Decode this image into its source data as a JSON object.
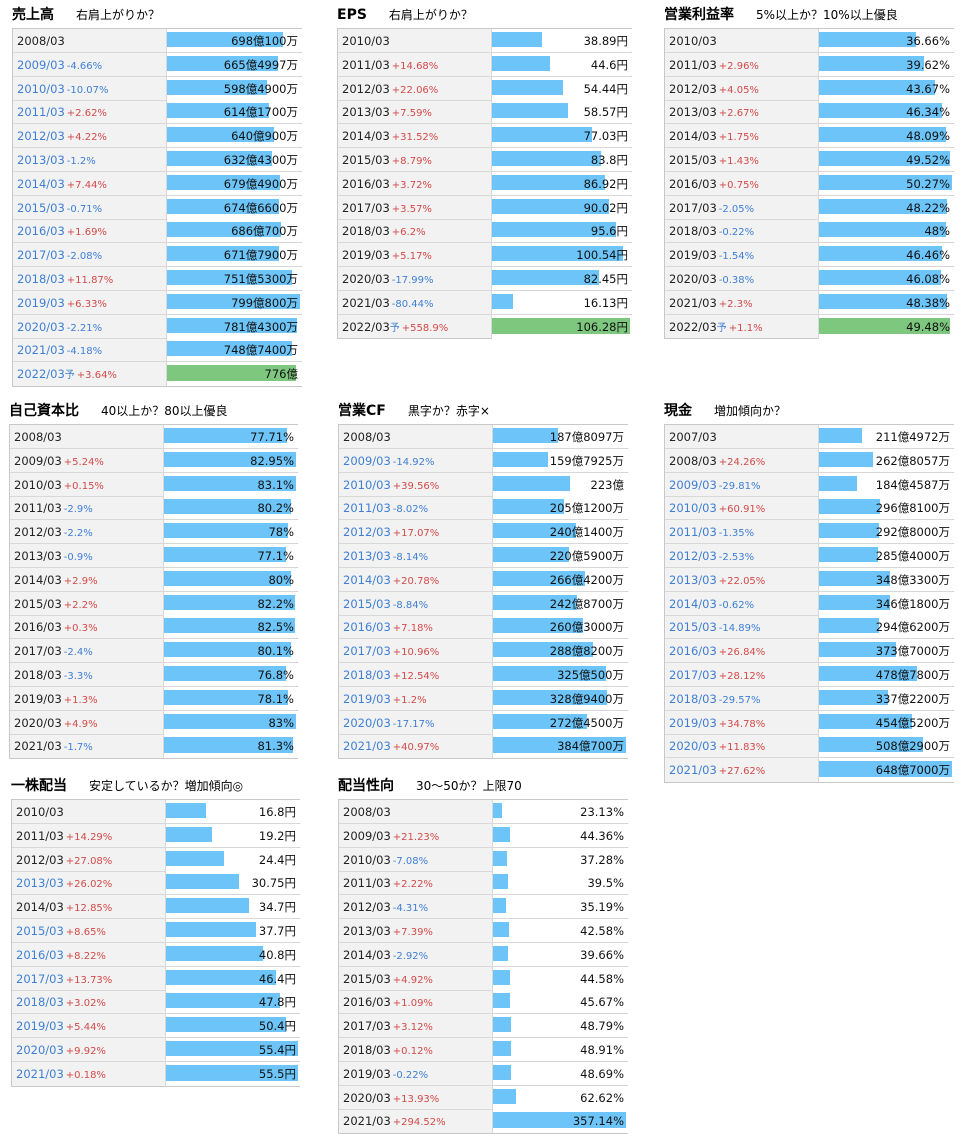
{
  "chart_data": [
    {
      "type": "table",
      "title": "売上高",
      "subtitle": "右肩上がりか？",
      "unit_display": "億/万",
      "categories": [
        "2008/03",
        "2009/03",
        "2010/03",
        "2011/03",
        "2012/03",
        "2013/03",
        "2014/03",
        "2015/03",
        "2016/03",
        "2017/03",
        "2018/03",
        "2019/03",
        "2020/03",
        "2021/03",
        "2022/03"
      ],
      "changes": [
        "",
        "-4.66%",
        "-10.07%",
        "+2.62%",
        "+4.22%",
        "-1.2%",
        "+7.44%",
        "-0.71%",
        "+1.69%",
        "-2.08%",
        "+11.87%",
        "+6.33%",
        "-2.21%",
        "-4.18%",
        "+3.64%"
      ],
      "labels": [
        "698億100万",
        "665億4997万",
        "598億4900万",
        "614億1700万",
        "640億900万",
        "632億4300万",
        "679億4900万",
        "674億6600万",
        "686億700万",
        "671億7900万",
        "751億5300万",
        "799億800万",
        "781億4300万",
        "748億7400万",
        "776億"
      ],
      "values": [
        698.01,
        665.4997,
        598.49,
        614.17,
        640.09,
        632.43,
        679.49,
        674.66,
        686.07,
        671.79,
        751.53,
        799.08,
        781.43,
        748.74,
        776
      ],
      "forecast_mark": "予",
      "forecast": [
        false,
        false,
        false,
        false,
        false,
        false,
        false,
        false,
        false,
        false,
        false,
        false,
        false,
        false,
        true
      ],
      "blue_years": [
        false,
        true,
        true,
        true,
        true,
        true,
        true,
        true,
        true,
        true,
        true,
        true,
        true,
        true,
        true
      ]
    },
    {
      "type": "table",
      "title": "EPS",
      "subtitle": "右肩上がりか？",
      "categories": [
        "2010/03",
        "2011/03",
        "2012/03",
        "2013/03",
        "2014/03",
        "2015/03",
        "2016/03",
        "2017/03",
        "2018/03",
        "2019/03",
        "2020/03",
        "2021/03",
        "2022/03"
      ],
      "changes": [
        "",
        "+14.68%",
        "+22.06%",
        "+7.59%",
        "+31.52%",
        "+8.79%",
        "+3.72%",
        "+3.57%",
        "+6.2%",
        "+5.17%",
        "-17.99%",
        "-80.44%",
        "+558.9%"
      ],
      "labels": [
        "38.89円",
        "44.6円",
        "54.44円",
        "58.57円",
        "77.03円",
        "83.8円",
        "86.92円",
        "90.02円",
        "95.6円",
        "100.54円",
        "82.45円",
        "16.13円",
        "106.28円"
      ],
      "values": [
        38.89,
        44.6,
        54.44,
        58.57,
        77.03,
        83.8,
        86.92,
        90.02,
        95.6,
        100.54,
        82.45,
        16.13,
        106.28
      ],
      "forecast_mark": "予",
      "forecast": [
        false,
        false,
        false,
        false,
        false,
        false,
        false,
        false,
        false,
        false,
        false,
        false,
        true
      ],
      "blue_years": [
        false,
        false,
        false,
        false,
        false,
        false,
        false,
        false,
        false,
        false,
        false,
        false,
        false
      ]
    },
    {
      "type": "table",
      "title": "営業利益率",
      "subtitle": "5%以上か？10%以上優良",
      "categories": [
        "2010/03",
        "2011/03",
        "2012/03",
        "2013/03",
        "2014/03",
        "2015/03",
        "2016/03",
        "2017/03",
        "2018/03",
        "2019/03",
        "2020/03",
        "2021/03",
        "2022/03"
      ],
      "changes": [
        "",
        "+2.96%",
        "+4.05%",
        "+2.67%",
        "+1.75%",
        "+1.43%",
        "+0.75%",
        "-2.05%",
        "-0.22%",
        "-1.54%",
        "-0.38%",
        "+2.3%",
        "+1.1%"
      ],
      "labels": [
        "36.66%",
        "39.62%",
        "43.67%",
        "46.34%",
        "48.09%",
        "49.52%",
        "50.27%",
        "48.22%",
        "48%",
        "46.46%",
        "46.08%",
        "48.38%",
        "49.48%"
      ],
      "values": [
        36.66,
        39.62,
        43.67,
        46.34,
        48.09,
        49.52,
        50.27,
        48.22,
        48,
        46.46,
        46.08,
        48.38,
        49.48
      ],
      "forecast_mark": "予",
      "forecast": [
        false,
        false,
        false,
        false,
        false,
        false,
        false,
        false,
        false,
        false,
        false,
        false,
        true
      ],
      "blue_years": [
        false,
        false,
        false,
        false,
        false,
        false,
        false,
        false,
        false,
        false,
        false,
        false,
        false
      ]
    },
    {
      "type": "table",
      "title": "自己資本比",
      "subtitle": "40以上か？80以上優良",
      "categories": [
        "2008/03",
        "2009/03",
        "2010/03",
        "2011/03",
        "2012/03",
        "2013/03",
        "2014/03",
        "2015/03",
        "2016/03",
        "2017/03",
        "2018/03",
        "2019/03",
        "2020/03",
        "2021/03"
      ],
      "changes": [
        "",
        "+5.24%",
        "+0.15%",
        "-2.9%",
        "-2.2%",
        "-0.9%",
        "+2.9%",
        "+2.2%",
        "+0.3%",
        "-2.4%",
        "-3.3%",
        "+1.3%",
        "+4.9%",
        "-1.7%"
      ],
      "labels": [
        "77.71%",
        "82.95%",
        "83.1%",
        "80.2%",
        "78%",
        "77.1%",
        "80%",
        "82.2%",
        "82.5%",
        "80.1%",
        "76.8%",
        "78.1%",
        "83%",
        "81.3%"
      ],
      "values": [
        77.71,
        82.95,
        83.1,
        80.2,
        78,
        77.1,
        80,
        82.2,
        82.5,
        80.1,
        76.8,
        78.1,
        83,
        81.3
      ],
      "forecast_mark": "予",
      "forecast": [
        false,
        false,
        false,
        false,
        false,
        false,
        false,
        false,
        false,
        false,
        false,
        false,
        false,
        false
      ],
      "blue_years": [
        false,
        false,
        false,
        false,
        false,
        false,
        false,
        false,
        false,
        false,
        false,
        false,
        false,
        false
      ]
    },
    {
      "type": "table",
      "title": "営業CF",
      "subtitle": "黒字か？赤字×",
      "categories": [
        "2008/03",
        "2009/03",
        "2010/03",
        "2011/03",
        "2012/03",
        "2013/03",
        "2014/03",
        "2015/03",
        "2016/03",
        "2017/03",
        "2018/03",
        "2019/03",
        "2020/03",
        "2021/03"
      ],
      "changes": [
        "",
        "-14.92%",
        "+39.56%",
        "-8.02%",
        "+17.07%",
        "-8.14%",
        "+20.78%",
        "-8.84%",
        "+7.18%",
        "+10.96%",
        "+12.54%",
        "+1.2%",
        "-17.17%",
        "+40.97%"
      ],
      "labels": [
        "187億8097万",
        "159億7925万",
        "223億",
        "205億1200万",
        "240億1400万",
        "220億5900万",
        "266億4200万",
        "242億8700万",
        "260億3000万",
        "288億8200万",
        "325億500万",
        "328億9400万",
        "272億4500万",
        "384億700万"
      ],
      "values": [
        187.8097,
        159.7925,
        223,
        205.12,
        240.14,
        220.59,
        266.42,
        242.87,
        260.3,
        288.82,
        325.05,
        328.94,
        272.45,
        384.07
      ],
      "forecast_mark": "予",
      "forecast": [
        false,
        false,
        false,
        false,
        false,
        false,
        false,
        false,
        false,
        false,
        false,
        false,
        false,
        false
      ],
      "blue_years": [
        false,
        true,
        true,
        true,
        true,
        true,
        true,
        true,
        true,
        true,
        true,
        true,
        true,
        true
      ]
    },
    {
      "type": "table",
      "title": "現金",
      "subtitle": "増加傾向か？",
      "categories": [
        "2007/03",
        "2008/03",
        "2009/03",
        "2010/03",
        "2011/03",
        "2012/03",
        "2013/03",
        "2014/03",
        "2015/03",
        "2016/03",
        "2017/03",
        "2018/03",
        "2019/03",
        "2020/03",
        "2021/03"
      ],
      "changes": [
        "",
        "+24.26%",
        "-29.81%",
        "+60.91%",
        "-1.35%",
        "-2.53%",
        "+22.05%",
        "-0.62%",
        "-14.89%",
        "+26.84%",
        "+28.12%",
        "-29.57%",
        "+34.78%",
        "+11.83%",
        "+27.62%"
      ],
      "labels": [
        "211億4972万",
        "262億8057万",
        "184億4587万",
        "296億8100万",
        "292億8000万",
        "285億4000万",
        "348億3300万",
        "346億1800万",
        "294億6200万",
        "373億7000万",
        "478億7800万",
        "337億2200万",
        "454億5200万",
        "508億2900万",
        "648億7000万"
      ],
      "values": [
        211.4972,
        262.8057,
        184.4587,
        296.81,
        292.8,
        285.4,
        348.33,
        346.18,
        294.62,
        373.7,
        478.78,
        337.22,
        454.52,
        508.29,
        648.7
      ],
      "forecast_mark": "予",
      "forecast": [
        false,
        false,
        false,
        false,
        false,
        false,
        false,
        false,
        false,
        false,
        false,
        false,
        false,
        false,
        false
      ],
      "blue_years": [
        false,
        false,
        true,
        true,
        true,
        true,
        true,
        true,
        true,
        true,
        true,
        true,
        true,
        true,
        true
      ]
    },
    {
      "type": "table",
      "title": "一株配当",
      "subtitle": "安定しているか？増加傾向◎",
      "categories": [
        "2010/03",
        "2011/03",
        "2012/03",
        "2013/03",
        "2014/03",
        "2015/03",
        "2016/03",
        "2017/03",
        "2018/03",
        "2019/03",
        "2020/03",
        "2021/03"
      ],
      "changes": [
        "",
        "+14.29%",
        "+27.08%",
        "+26.02%",
        "+12.85%",
        "+8.65%",
        "+8.22%",
        "+13.73%",
        "+3.02%",
        "+5.44%",
        "+9.92%",
        "+0.18%"
      ],
      "labels": [
        "16.8円",
        "19.2円",
        "24.4円",
        "30.75円",
        "34.7円",
        "37.7円",
        "40.8円",
        "46.4円",
        "47.8円",
        "50.4円",
        "55.4円",
        "55.5円"
      ],
      "values": [
        16.8,
        19.2,
        24.4,
        30.75,
        34.7,
        37.7,
        40.8,
        46.4,
        47.8,
        50.4,
        55.4,
        55.5
      ],
      "forecast_mark": "予",
      "forecast": [
        false,
        false,
        false,
        false,
        false,
        false,
        false,
        false,
        false,
        false,
        false,
        false
      ],
      "blue_years": [
        false,
        false,
        false,
        true,
        false,
        true,
        true,
        true,
        true,
        true,
        true,
        true
      ]
    },
    {
      "type": "table",
      "title": "配当性向",
      "subtitle": "30～50か？上限70",
      "categories": [
        "2008/03",
        "2009/03",
        "2010/03",
        "2011/03",
        "2012/03",
        "2013/03",
        "2014/03",
        "2015/03",
        "2016/03",
        "2017/03",
        "2018/03",
        "2019/03",
        "2020/03",
        "2021/03"
      ],
      "changes": [
        "",
        "+21.23%",
        "-7.08%",
        "+2.22%",
        "-4.31%",
        "+7.39%",
        "-2.92%",
        "+4.92%",
        "+1.09%",
        "+3.12%",
        "+0.12%",
        "-0.22%",
        "+13.93%",
        "+294.52%"
      ],
      "labels": [
        "23.13%",
        "44.36%",
        "37.28%",
        "39.5%",
        "35.19%",
        "42.58%",
        "39.66%",
        "44.58%",
        "45.67%",
        "48.79%",
        "48.91%",
        "48.69%",
        "62.62%",
        "357.14%"
      ],
      "values": [
        23.13,
        44.36,
        37.28,
        39.5,
        35.19,
        42.58,
        39.66,
        44.58,
        45.67,
        48.79,
        48.91,
        48.69,
        62.62,
        357.14
      ],
      "forecast_mark": "予",
      "forecast": [
        false,
        false,
        false,
        false,
        false,
        false,
        false,
        false,
        false,
        false,
        false,
        false,
        false,
        false
      ],
      "blue_years": [
        false,
        false,
        false,
        false,
        false,
        false,
        false,
        false,
        false,
        false,
        false,
        false,
        false,
        false
      ]
    }
  ]
}
